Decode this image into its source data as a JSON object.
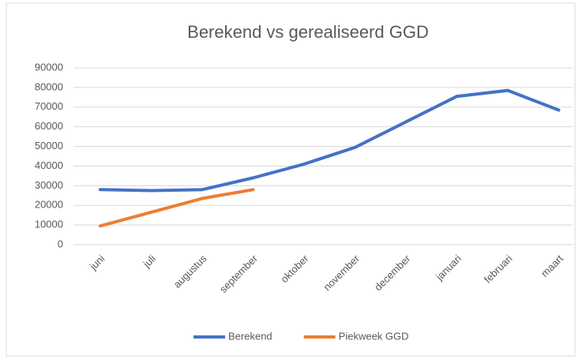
{
  "chart_data": {
    "type": "line",
    "title": "Berekend vs gerealiseerd GGD",
    "categories": [
      "juni",
      "juli",
      "augustus",
      "september",
      "oktober",
      "november",
      "december",
      "januari",
      "februari",
      "maart"
    ],
    "series": [
      {
        "name": "Berekend",
        "color": "#4472c4",
        "values": [
          28000,
          27500,
          28000,
          34000,
          41000,
          49500,
          62500,
          75500,
          78500,
          68500
        ]
      },
      {
        "name": "Piekweek GGD",
        "color": "#ed7d31",
        "values": [
          9500,
          16500,
          23500,
          28000,
          null,
          null,
          null,
          null,
          null,
          null
        ]
      }
    ],
    "ylim": [
      0,
      90000
    ],
    "yticks": [
      0,
      10000,
      20000,
      30000,
      40000,
      50000,
      60000,
      70000,
      80000,
      90000
    ],
    "grid": true,
    "legend": "bottom"
  }
}
